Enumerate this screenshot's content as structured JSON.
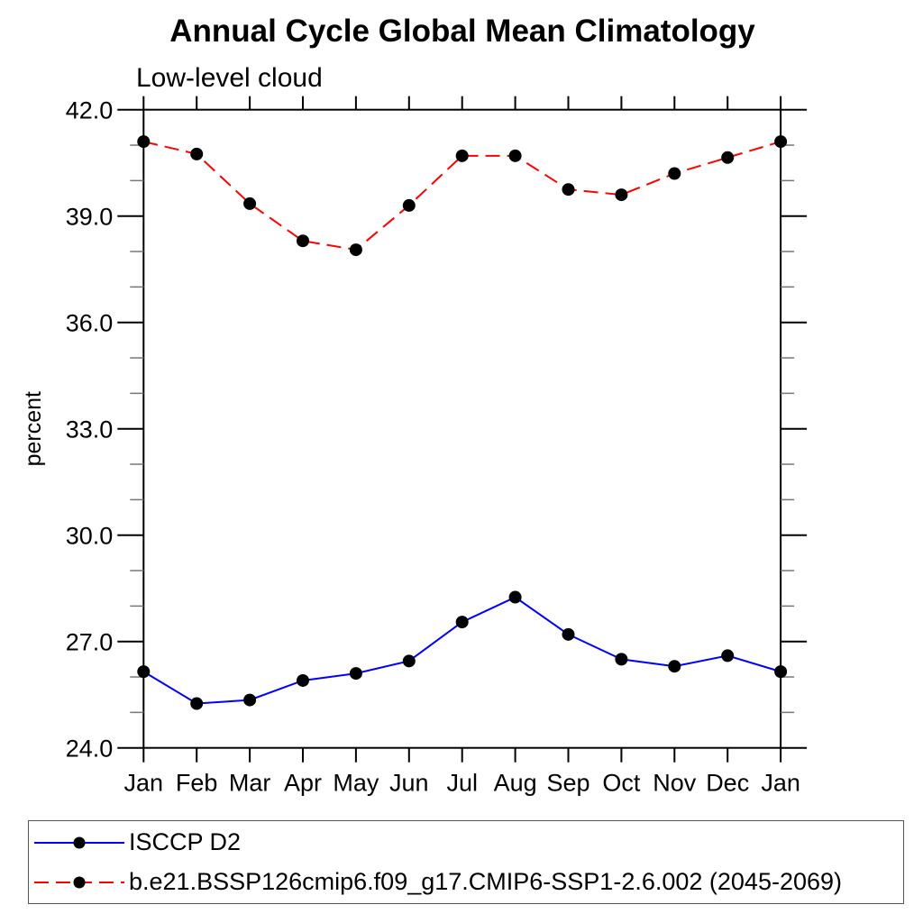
{
  "chart_data": {
    "type": "line",
    "title": "Annual Cycle Global Mean Climatology",
    "subtitle": "Low-level cloud",
    "ylabel": "percent",
    "xlabel": "",
    "categories": [
      "Jan",
      "Feb",
      "Mar",
      "Apr",
      "May",
      "Jun",
      "Jul",
      "Aug",
      "Sep",
      "Oct",
      "Nov",
      "Dec",
      "Jan"
    ],
    "ylim": [
      24.0,
      42.0
    ],
    "y_major_ticks": [
      24.0,
      27.0,
      30.0,
      33.0,
      36.0,
      39.0,
      42.0
    ],
    "y_major_tick_labels": [
      "24.0",
      "27.0",
      "30.0",
      "33.0",
      "36.0",
      "39.0",
      "42.0"
    ],
    "y_minor_tick_interval": 1.0,
    "grid": "off",
    "legend_position": "bottom-left-box",
    "axis_color": "#000000",
    "series": [
      {
        "name": "ISCCP D2",
        "color": "#0000ff",
        "line_style": "solid",
        "marker": "filled-circle",
        "marker_color": "#000000",
        "values": [
          26.15,
          25.25,
          25.35,
          25.9,
          26.1,
          26.45,
          27.55,
          28.25,
          27.2,
          26.5,
          26.3,
          26.6,
          26.15
        ]
      },
      {
        "name": "b.e21.BSSP126cmip6.f09_g17.CMIP6-SSP1-2.6.002 (2045-2069)",
        "color": "#ff0000",
        "line_style": "dashed",
        "marker": "filled-circle",
        "marker_color": "#000000",
        "values": [
          41.1,
          40.75,
          39.35,
          38.3,
          38.05,
          39.3,
          40.7,
          40.7,
          39.75,
          39.6,
          40.2,
          40.65,
          41.1
        ]
      }
    ]
  }
}
